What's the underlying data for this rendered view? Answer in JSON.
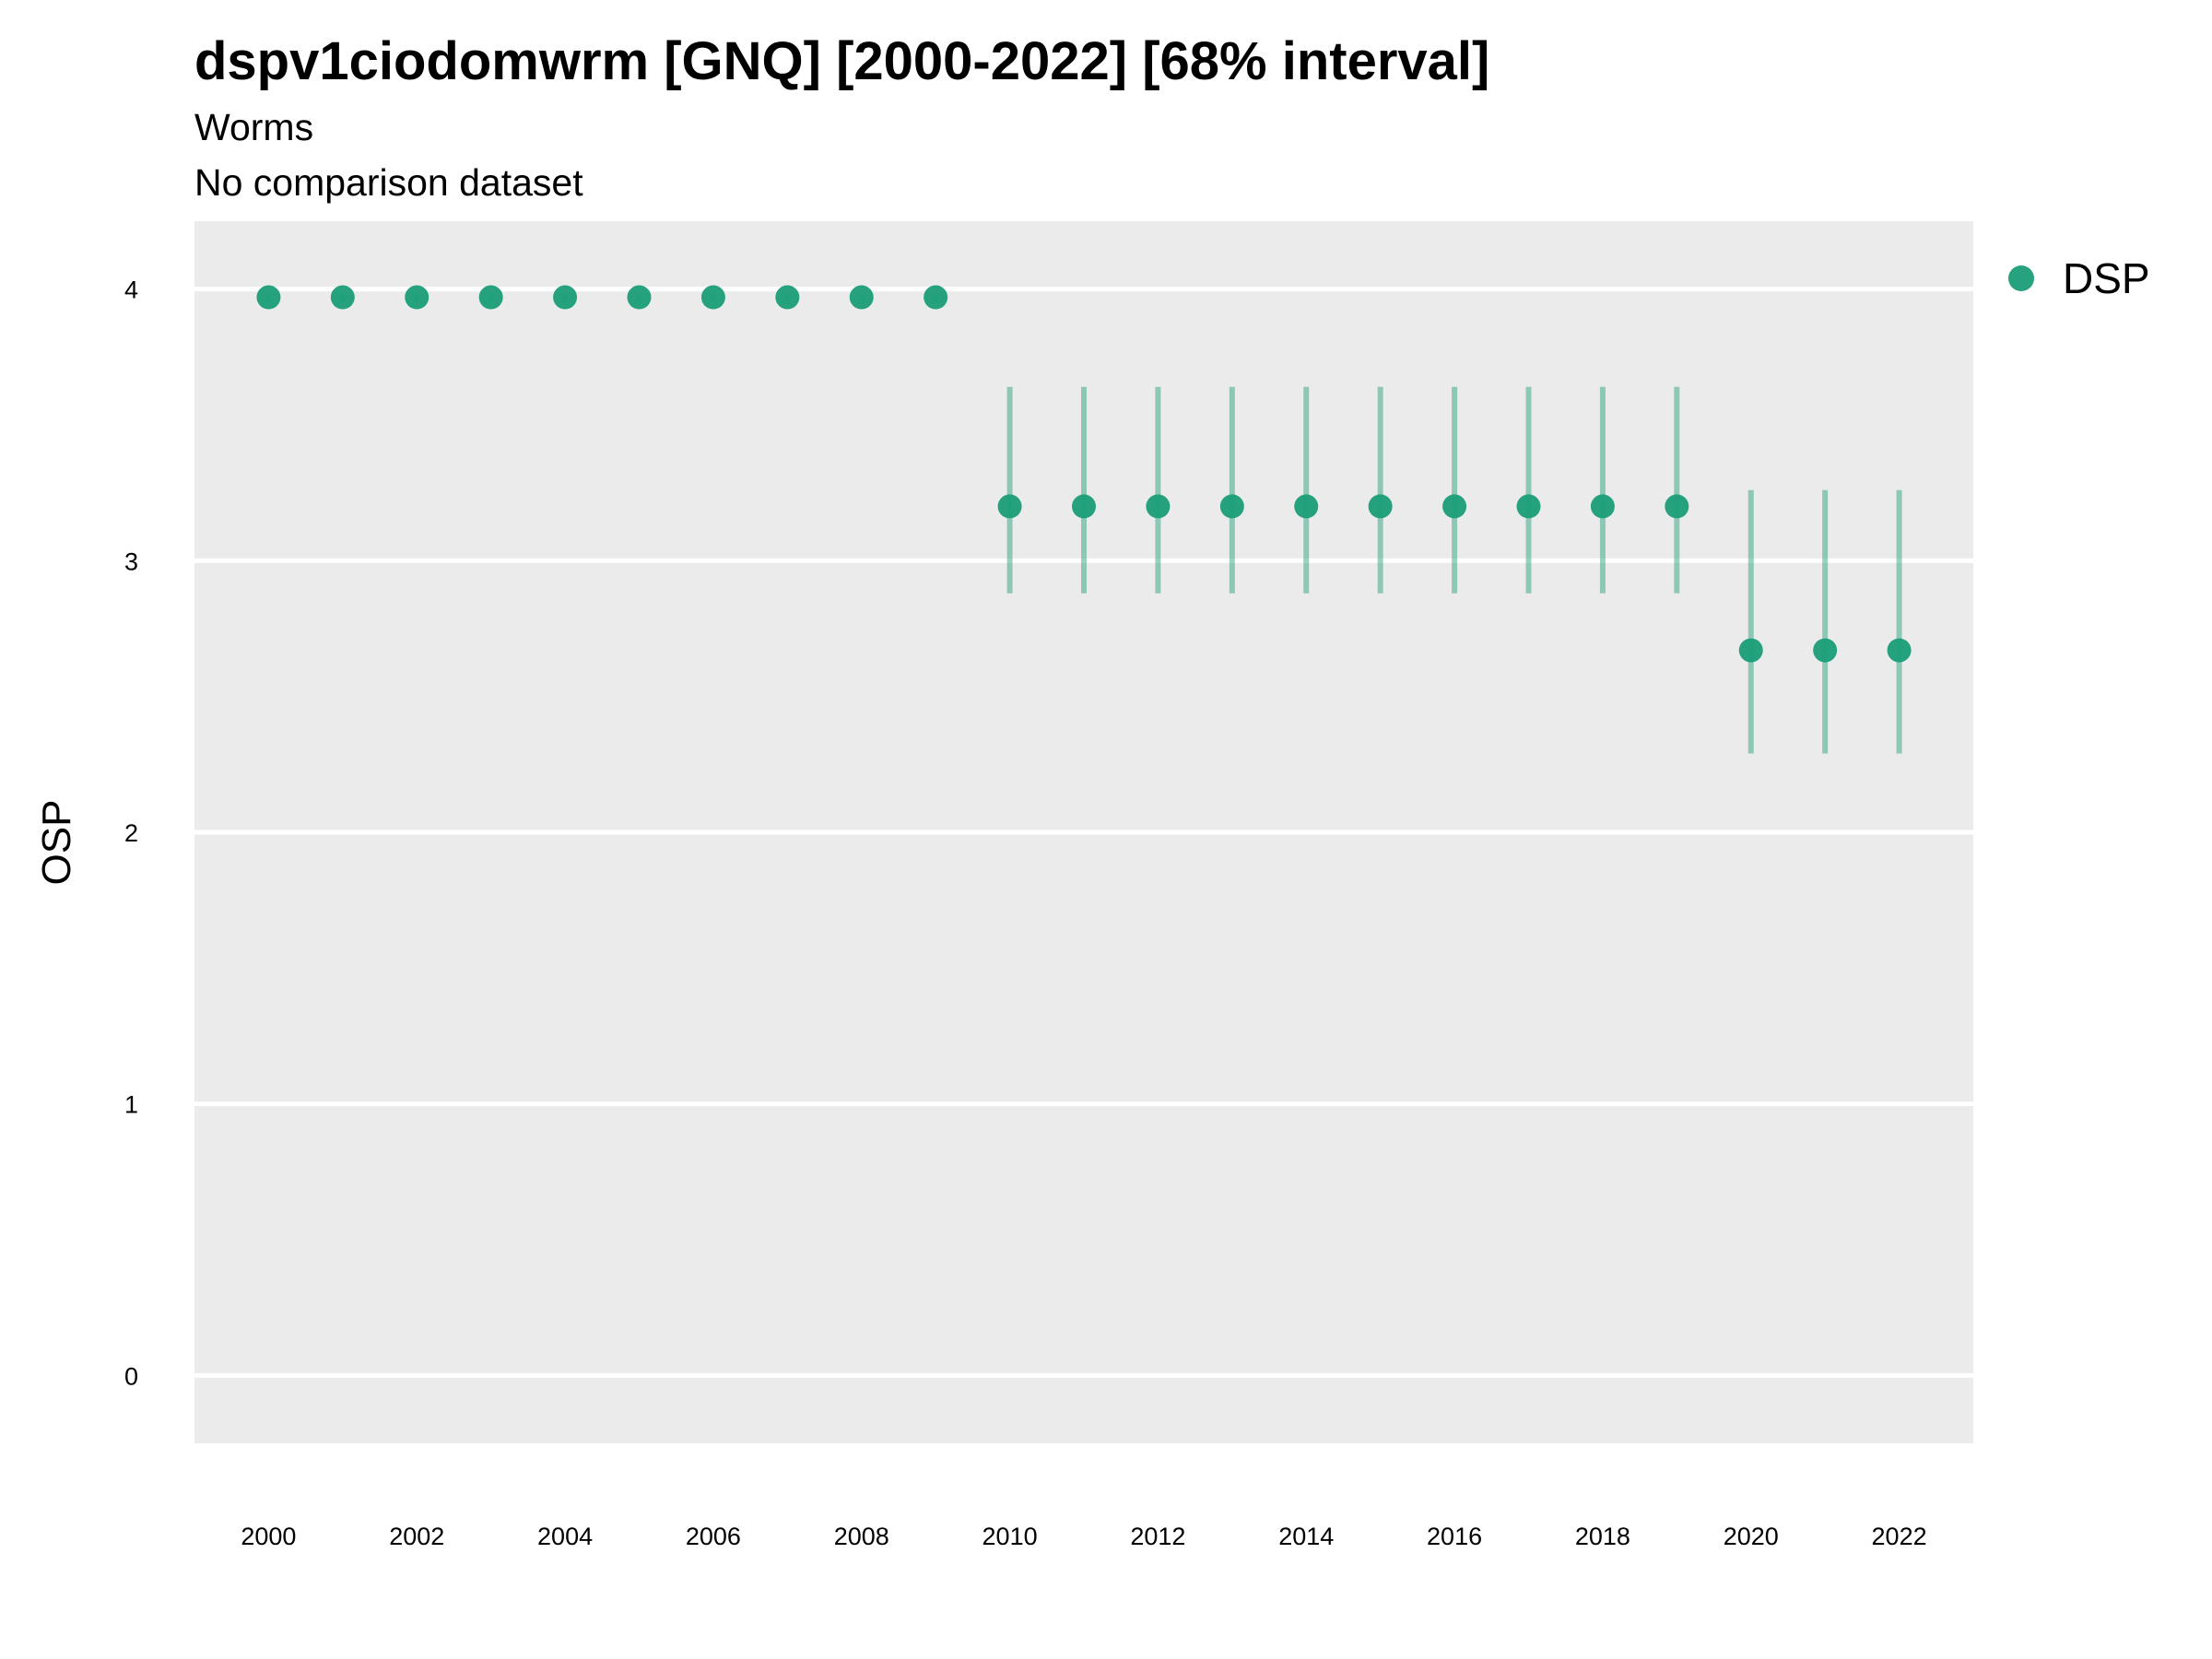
{
  "chart_data": {
    "type": "scatter",
    "title": "dspv1ciodomwrm [GNQ] [2000-2022] [68% interval]",
    "subtitle": "Worms",
    "caption": "No comparison dataset",
    "ylabel": "OSP",
    "xlabel": "",
    "ylim": [
      -0.25,
      4.25
    ],
    "xlim": [
      1999.0,
      2023.0
    ],
    "yticks": [
      0,
      1,
      2,
      3,
      4
    ],
    "xticks": [
      2000,
      2002,
      2004,
      2006,
      2008,
      2010,
      2012,
      2014,
      2016,
      2018,
      2020,
      2022
    ],
    "grid": true,
    "legend_position": "right",
    "series": [
      {
        "name": "DSP",
        "color": "#1a9e77",
        "x": [
          2000,
          2001,
          2002,
          2003,
          2004,
          2005,
          2006,
          2007,
          2008,
          2009,
          2010,
          2011,
          2012,
          2013,
          2014,
          2015,
          2016,
          2017,
          2018,
          2019,
          2020,
          2021,
          2022
        ],
        "y": [
          3.97,
          3.97,
          3.97,
          3.97,
          3.97,
          3.97,
          3.97,
          3.97,
          3.97,
          3.97,
          3.2,
          3.2,
          3.2,
          3.2,
          3.2,
          3.2,
          3.2,
          3.2,
          3.2,
          3.2,
          2.67,
          2.67,
          2.67
        ],
        "lower": [
          3.95,
          3.95,
          3.95,
          3.95,
          3.95,
          3.95,
          3.95,
          3.95,
          3.95,
          3.95,
          2.88,
          2.88,
          2.88,
          2.88,
          2.88,
          2.88,
          2.88,
          2.88,
          2.88,
          2.88,
          2.29,
          2.29,
          2.29
        ],
        "upper": [
          3.98,
          3.98,
          3.98,
          3.98,
          3.98,
          3.98,
          3.98,
          3.98,
          3.98,
          3.98,
          3.64,
          3.64,
          3.64,
          3.64,
          3.64,
          3.64,
          3.64,
          3.64,
          3.64,
          3.64,
          3.26,
          3.26,
          3.26
        ]
      }
    ]
  }
}
